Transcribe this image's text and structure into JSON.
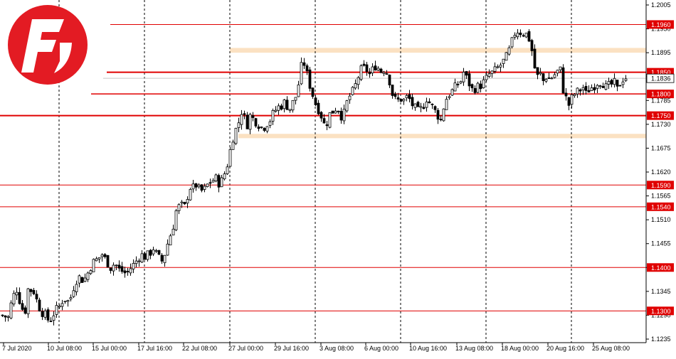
{
  "chart_data": {
    "type": "candlestick",
    "instrument": "EURUSD",
    "ylim": [
      1.1235,
      1.2005
    ],
    "y_ticks": [
      "1.2005",
      "1.1950",
      "1.1895",
      "1.1840",
      "1.1785",
      "1.1730",
      "1.1675",
      "1.1620",
      "1.1565",
      "1.1510",
      "1.1455",
      "1.1400",
      "1.1345",
      "1.1290",
      "1.1235"
    ],
    "x_ticks": [
      "7 Jul 2020",
      "10 Jul 08:00",
      "15 Jul 00:00",
      "17 Jul 16:00",
      "22 Jul 08:00",
      "27 Jul 00:00",
      "29 Jul 16:00",
      "3 Aug 08:00",
      "6 Aug 00:00",
      "10 Aug 16:00",
      "13 Aug 08:00",
      "18 Aug 00:00",
      "20 Aug 16:00",
      "25 Aug 08:00"
    ],
    "levels": [
      {
        "value": 1.196,
        "label": "1.1960"
      },
      {
        "value": 1.185,
        "label": "1.1850"
      },
      {
        "value": 1.18,
        "label": "1.1800"
      },
      {
        "value": 1.175,
        "label": "1.1750"
      },
      {
        "value": 1.159,
        "label": "1.1590"
      },
      {
        "value": 1.154,
        "label": "1.1540"
      },
      {
        "value": 1.14,
        "label": "1.1400"
      },
      {
        "value": 1.13,
        "label": "1.1300"
      }
    ],
    "zones": [
      [
        1.1895,
        1.1906
      ],
      [
        1.1698,
        1.1708
      ]
    ],
    "current_price": {
      "value": 1.1836,
      "label": "1.1836"
    },
    "close_path": [
      [
        0,
        1.129
      ],
      [
        10,
        1.1285
      ],
      [
        16,
        1.133
      ],
      [
        22,
        1.135
      ],
      [
        26,
        1.1325
      ],
      [
        30,
        1.1305
      ],
      [
        36,
        1.13
      ],
      [
        38,
        1.135
      ],
      [
        46,
        1.1345
      ],
      [
        52,
        1.1315
      ],
      [
        56,
        1.13
      ],
      [
        62,
        1.129
      ],
      [
        68,
        1.1275
      ],
      [
        76,
        1.13
      ],
      [
        82,
        1.131
      ],
      [
        88,
        1.133
      ],
      [
        96,
        1.132
      ],
      [
        102,
        1.1355
      ],
      [
        108,
        1.138
      ],
      [
        116,
        1.137
      ],
      [
        120,
        1.138
      ],
      [
        128,
        1.141
      ],
      [
        136,
        1.142
      ],
      [
        142,
        1.143
      ],
      [
        148,
        1.1415
      ],
      [
        154,
        1.14
      ],
      [
        160,
        1.141
      ],
      [
        166,
        1.1395
      ],
      [
        172,
        1.139
      ],
      [
        176,
        1.1385
      ],
      [
        180,
        1.1395
      ],
      [
        188,
        1.141
      ],
      [
        196,
        1.143
      ],
      [
        202,
        1.1425
      ],
      [
        208,
        1.143
      ],
      [
        214,
        1.1445
      ],
      [
        220,
        1.1425
      ],
      [
        226,
        1.1415
      ],
      [
        232,
        1.144
      ],
      [
        236,
        1.147
      ],
      [
        240,
        1.148
      ],
      [
        246,
        1.153
      ],
      [
        252,
        1.1545
      ],
      [
        256,
        1.154
      ],
      [
        260,
        1.154
      ],
      [
        264,
        1.159
      ],
      [
        268,
        1.158
      ],
      [
        274,
        1.159
      ],
      [
        280,
        1.1575
      ],
      [
        286,
        1.158
      ],
      [
        290,
        1.159
      ],
      [
        296,
        1.16
      ],
      [
        302,
        1.1605
      ],
      [
        306,
        1.1595
      ],
      [
        310,
        1.16
      ],
      [
        316,
        1.1625
      ],
      [
        320,
        1.165
      ],
      [
        324,
        1.169
      ],
      [
        328,
        1.171
      ],
      [
        334,
        1.1735
      ],
      [
        338,
        1.176
      ],
      [
        342,
        1.1745
      ],
      [
        346,
        1.173
      ],
      [
        350,
        1.175
      ],
      [
        356,
        1.174
      ],
      [
        362,
        1.173
      ],
      [
        368,
        1.172
      ],
      [
        372,
        1.173
      ],
      [
        378,
        1.174
      ],
      [
        384,
        1.176
      ],
      [
        390,
        1.177
      ],
      [
        396,
        1.1775
      ],
      [
        400,
        1.1785
      ],
      [
        404,
        1.176
      ],
      [
        410,
        1.178
      ],
      [
        416,
        1.18
      ],
      [
        420,
        1.1845
      ],
      [
        424,
        1.188
      ],
      [
        428,
        1.186
      ],
      [
        432,
        1.183
      ],
      [
        436,
        1.181
      ],
      [
        440,
        1.1785
      ],
      [
        444,
        1.177
      ],
      [
        448,
        1.176
      ],
      [
        452,
        1.174
      ],
      [
        456,
        1.172
      ],
      [
        460,
        1.175
      ],
      [
        466,
        1.176
      ],
      [
        472,
        1.177
      ],
      [
        476,
        1.176
      ],
      [
        480,
        1.174
      ],
      [
        484,
        1.177
      ],
      [
        488,
        1.179
      ],
      [
        492,
        1.18
      ],
      [
        496,
        1.181
      ],
      [
        500,
        1.183
      ],
      [
        504,
        1.185
      ],
      [
        508,
        1.186
      ],
      [
        514,
        1.1855
      ],
      [
        518,
        1.1845
      ],
      [
        524,
        1.186
      ],
      [
        528,
        1.187
      ],
      [
        532,
        1.185
      ],
      [
        536,
        1.1855
      ],
      [
        540,
        1.186
      ],
      [
        546,
        1.183
      ],
      [
        550,
        1.18
      ],
      [
        556,
        1.178
      ],
      [
        560,
        1.179
      ],
      [
        566,
        1.1785
      ],
      [
        572,
        1.1795
      ],
      [
        576,
        1.178
      ],
      [
        580,
        1.177
      ],
      [
        586,
        1.176
      ],
      [
        590,
        1.1765
      ],
      [
        594,
        1.1775
      ],
      [
        598,
        1.179
      ],
      [
        602,
        1.178
      ],
      [
        606,
        1.177
      ],
      [
        610,
        1.176
      ],
      [
        614,
        1.175
      ],
      [
        618,
        1.174
      ],
      [
        622,
        1.177
      ],
      [
        626,
        1.179
      ],
      [
        630,
        1.18
      ],
      [
        636,
        1.181
      ],
      [
        640,
        1.182
      ],
      [
        646,
        1.183
      ],
      [
        650,
        1.185
      ],
      [
        656,
        1.183
      ],
      [
        662,
        1.181
      ],
      [
        668,
        1.1815
      ],
      [
        674,
        1.182
      ],
      [
        680,
        1.183
      ],
      [
        686,
        1.1845
      ],
      [
        692,
        1.185
      ],
      [
        698,
        1.186
      ],
      [
        704,
        1.187
      ],
      [
        708,
        1.188
      ],
      [
        712,
        1.189
      ],
      [
        716,
        1.191
      ],
      [
        720,
        1.193
      ],
      [
        724,
        1.195
      ],
      [
        728,
        1.194
      ],
      [
        732,
        1.1945
      ],
      [
        736,
        1.1935
      ],
      [
        740,
        1.194
      ],
      [
        746,
        1.19
      ],
      [
        750,
        1.186
      ],
      [
        754,
        1.184
      ],
      [
        758,
        1.1845
      ],
      [
        762,
        1.183
      ],
      [
        766,
        1.184
      ],
      [
        770,
        1.1835
      ],
      [
        776,
        1.184
      ],
      [
        780,
        1.185
      ],
      [
        786,
        1.1855
      ],
      [
        790,
        1.181
      ],
      [
        794,
        1.179
      ],
      [
        798,
        1.1775
      ],
      [
        802,
        1.179
      ],
      [
        806,
        1.18
      ],
      [
        810,
        1.1805
      ],
      [
        814,
        1.181
      ],
      [
        818,
        1.1815
      ],
      [
        822,
        1.18
      ],
      [
        826,
        1.181
      ],
      [
        830,
        1.1815
      ],
      [
        834,
        1.182
      ],
      [
        840,
        1.183
      ],
      [
        846,
        1.1825
      ],
      [
        850,
        1.1815
      ],
      [
        856,
        1.182
      ],
      [
        862,
        1.1825
      ],
      [
        866,
        1.181
      ],
      [
        870,
        1.1825
      ],
      [
        876,
        1.184
      ],
      [
        880,
        1.1836
      ]
    ]
  }
}
